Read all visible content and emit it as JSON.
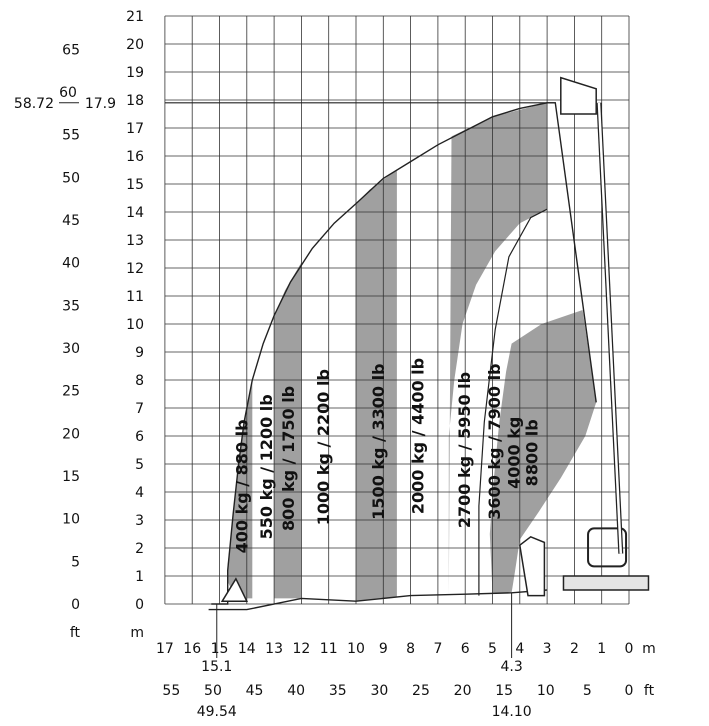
{
  "chart_data": {
    "type": "area",
    "title": "",
    "xlabel": "",
    "ylabel": "",
    "x_unit_m": "m",
    "x_unit_ft": "ft",
    "y_unit_m": "m",
    "y_unit_ft": "ft",
    "xlim": [
      17,
      0
    ],
    "ylim": [
      0,
      21
    ],
    "grid": true,
    "x_ticks_m": [
      "17",
      "16",
      "15",
      "14",
      "13",
      "12",
      "11",
      "10",
      "9",
      "8",
      "7",
      "6",
      "5",
      "4",
      "3",
      "2",
      "1",
      "0"
    ],
    "x_ticks_ft": [
      "55",
      "50",
      "45",
      "40",
      "35",
      "30",
      "25",
      "20",
      "15",
      "10",
      "5",
      "0"
    ],
    "y_ticks_m": [
      "0",
      "1",
      "2",
      "3",
      "4",
      "5",
      "6",
      "7",
      "8",
      "9",
      "10",
      "11",
      "12",
      "13",
      "14",
      "15",
      "16",
      "17",
      "18",
      "19",
      "20",
      "21"
    ],
    "y_ticks_ft": [
      "0",
      "5",
      "10",
      "15",
      "20",
      "25",
      "30",
      "35",
      "40",
      "45",
      "50",
      "55",
      "60",
      "65"
    ],
    "annotations": {
      "max_height_ft": "58.72",
      "max_height_m": "17.9",
      "max_reach_m": "15.1",
      "max_reach_ft": "49.54",
      "reach_mark_m": "4.3",
      "reach_mark_ft": "14.10"
    },
    "series": [
      {
        "name": "400 kg / 880 lb",
        "boundary": [
          [
            14.7,
            0.8
          ],
          [
            14.1,
            6.5
          ],
          [
            13.8,
            8
          ]
        ],
        "fill": "#a0a0a0"
      },
      {
        "name": "550 kg / 1200 lb",
        "boundary": [
          [
            13.8,
            8
          ],
          [
            13,
            10.3
          ]
        ],
        "fill": "#ffffff"
      },
      {
        "name": "800 kg / 1750 lb",
        "boundary": [
          [
            13,
            0.2
          ],
          [
            13,
            10.3
          ],
          [
            12,
            12.2
          ]
        ],
        "fill": "#a0a0a0"
      },
      {
        "name": "1000 kg / 2200 lb",
        "boundary": [
          [
            12,
            12.2
          ],
          [
            10,
            14.3
          ]
        ],
        "fill": "#ffffff"
      },
      {
        "name": "1500 kg / 3300 lb",
        "boundary": [
          [
            10,
            0
          ],
          [
            10,
            14.3
          ],
          [
            8.5,
            15.5
          ]
        ],
        "fill": "#a0a0a0"
      },
      {
        "name": "2000 kg / 4400 lb",
        "boundary": [
          [
            8.5,
            15.5
          ],
          [
            6.5,
            16.7
          ]
        ],
        "fill": "#ffffff"
      },
      {
        "name": "2700 kg / 5950 lb",
        "boundary": [
          [
            6.5,
            16.7
          ],
          [
            3,
            17.9
          ],
          [
            3,
            14.1
          ],
          [
            4,
            13.6
          ]
        ],
        "fill": "#a0a0a0"
      },
      {
        "name": "3600 kg / 7900 lb",
        "boundary": [
          [
            5.5,
            0.3
          ],
          [
            3,
            14.1
          ],
          [
            1.7,
            11
          ]
        ],
        "fill": "#ffffff"
      },
      {
        "name": "4000 kg\n8800 lb",
        "boundary": [
          [
            5,
            0.4
          ],
          [
            4.3,
            9.3
          ],
          [
            1.7,
            10.5
          ],
          [
            1.2,
            7.2
          ]
        ],
        "fill": "#a0a0a0"
      }
    ]
  }
}
